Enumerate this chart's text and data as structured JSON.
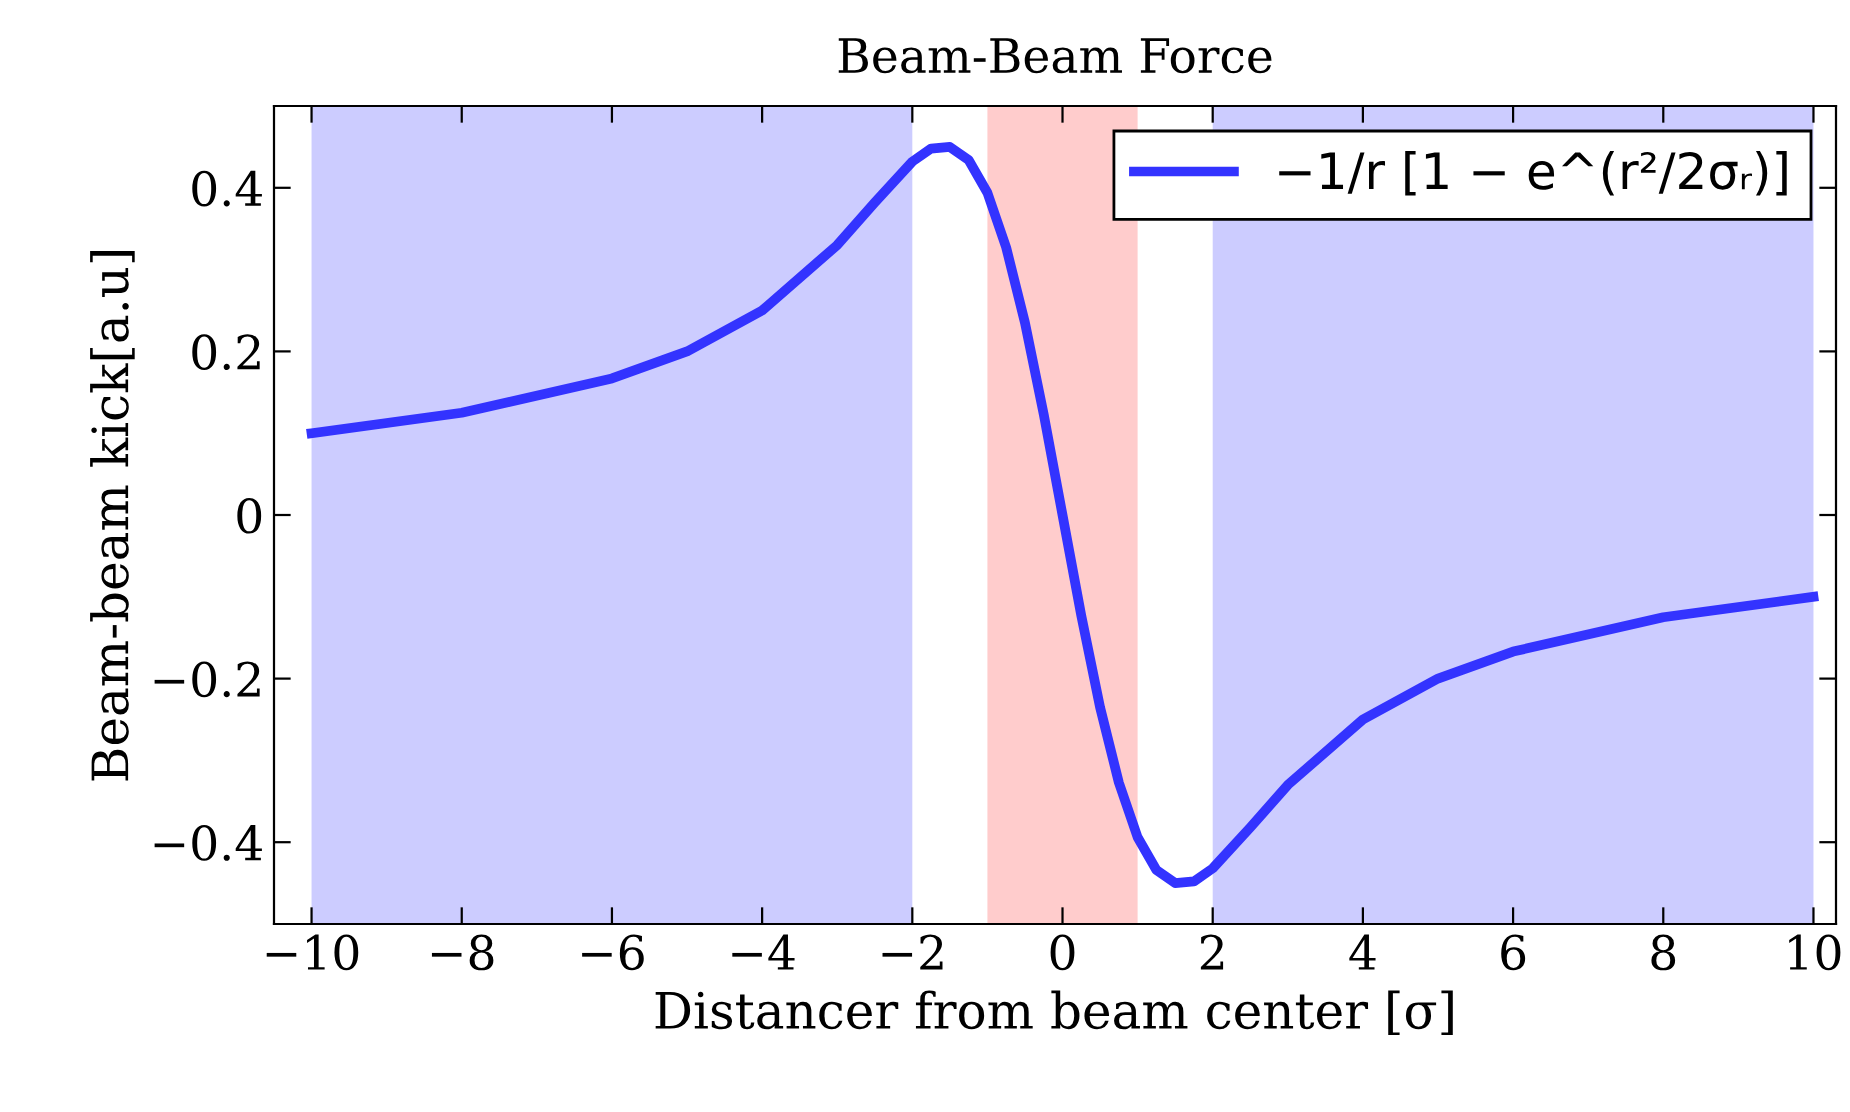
{
  "chart_data": {
    "type": "line",
    "title": "Beam-Beam Force",
    "xlabel": "Distancer from beam center [σ]",
    "ylabel": "Beam-beam kick[a.u]",
    "x": [
      -10,
      -8,
      -6,
      -5,
      -4,
      -3,
      -2.5,
      -2,
      -1.75,
      -1.5,
      -1.25,
      -1,
      -0.75,
      -0.5,
      -0.25,
      0,
      0.25,
      0.5,
      0.75,
      1,
      1.25,
      1.5,
      1.75,
      2,
      2.5,
      3,
      4,
      5,
      6,
      8,
      10
    ],
    "series": [
      {
        "name": "−1/r [1 − e^(r²/2σᵣ)]",
        "color": "#3333ff",
        "values": [
          0.1,
          0.125,
          0.167,
          0.2,
          0.25,
          0.33,
          0.382,
          0.432,
          0.448,
          0.45,
          0.434,
          0.394,
          0.327,
          0.235,
          0.123,
          0,
          -0.123,
          -0.235,
          -0.327,
          -0.394,
          -0.434,
          -0.45,
          -0.448,
          -0.432,
          -0.382,
          -0.33,
          -0.25,
          -0.2,
          -0.167,
          -0.125,
          -0.1
        ]
      }
    ],
    "bands": [
      {
        "axis": "x",
        "from": -10,
        "to": -2,
        "color": "#ccccff"
      },
      {
        "axis": "x",
        "from": -1,
        "to": 1,
        "color": "#ffcccc"
      },
      {
        "axis": "x",
        "from": 2,
        "to": 10,
        "color": "#ccccff"
      }
    ],
    "xlim": [
      -10.5,
      10.3
    ],
    "ylim": [
      -0.5,
      0.5
    ],
    "xticks": [
      {
        "value": -10,
        "label": "−10"
      },
      {
        "value": -8,
        "label": "−8"
      },
      {
        "value": -6,
        "label": "−6"
      },
      {
        "value": -4,
        "label": "−4"
      },
      {
        "value": -2,
        "label": "−2"
      },
      0,
      2,
      4,
      6,
      8,
      10
    ],
    "yticks": [
      {
        "value": -0.4,
        "label": "−0.4"
      },
      {
        "value": -0.2,
        "label": "−0.2"
      },
      0,
      0.2,
      0.4
    ],
    "legend": "top right",
    "grid": false,
    "line_style": "solid"
  }
}
